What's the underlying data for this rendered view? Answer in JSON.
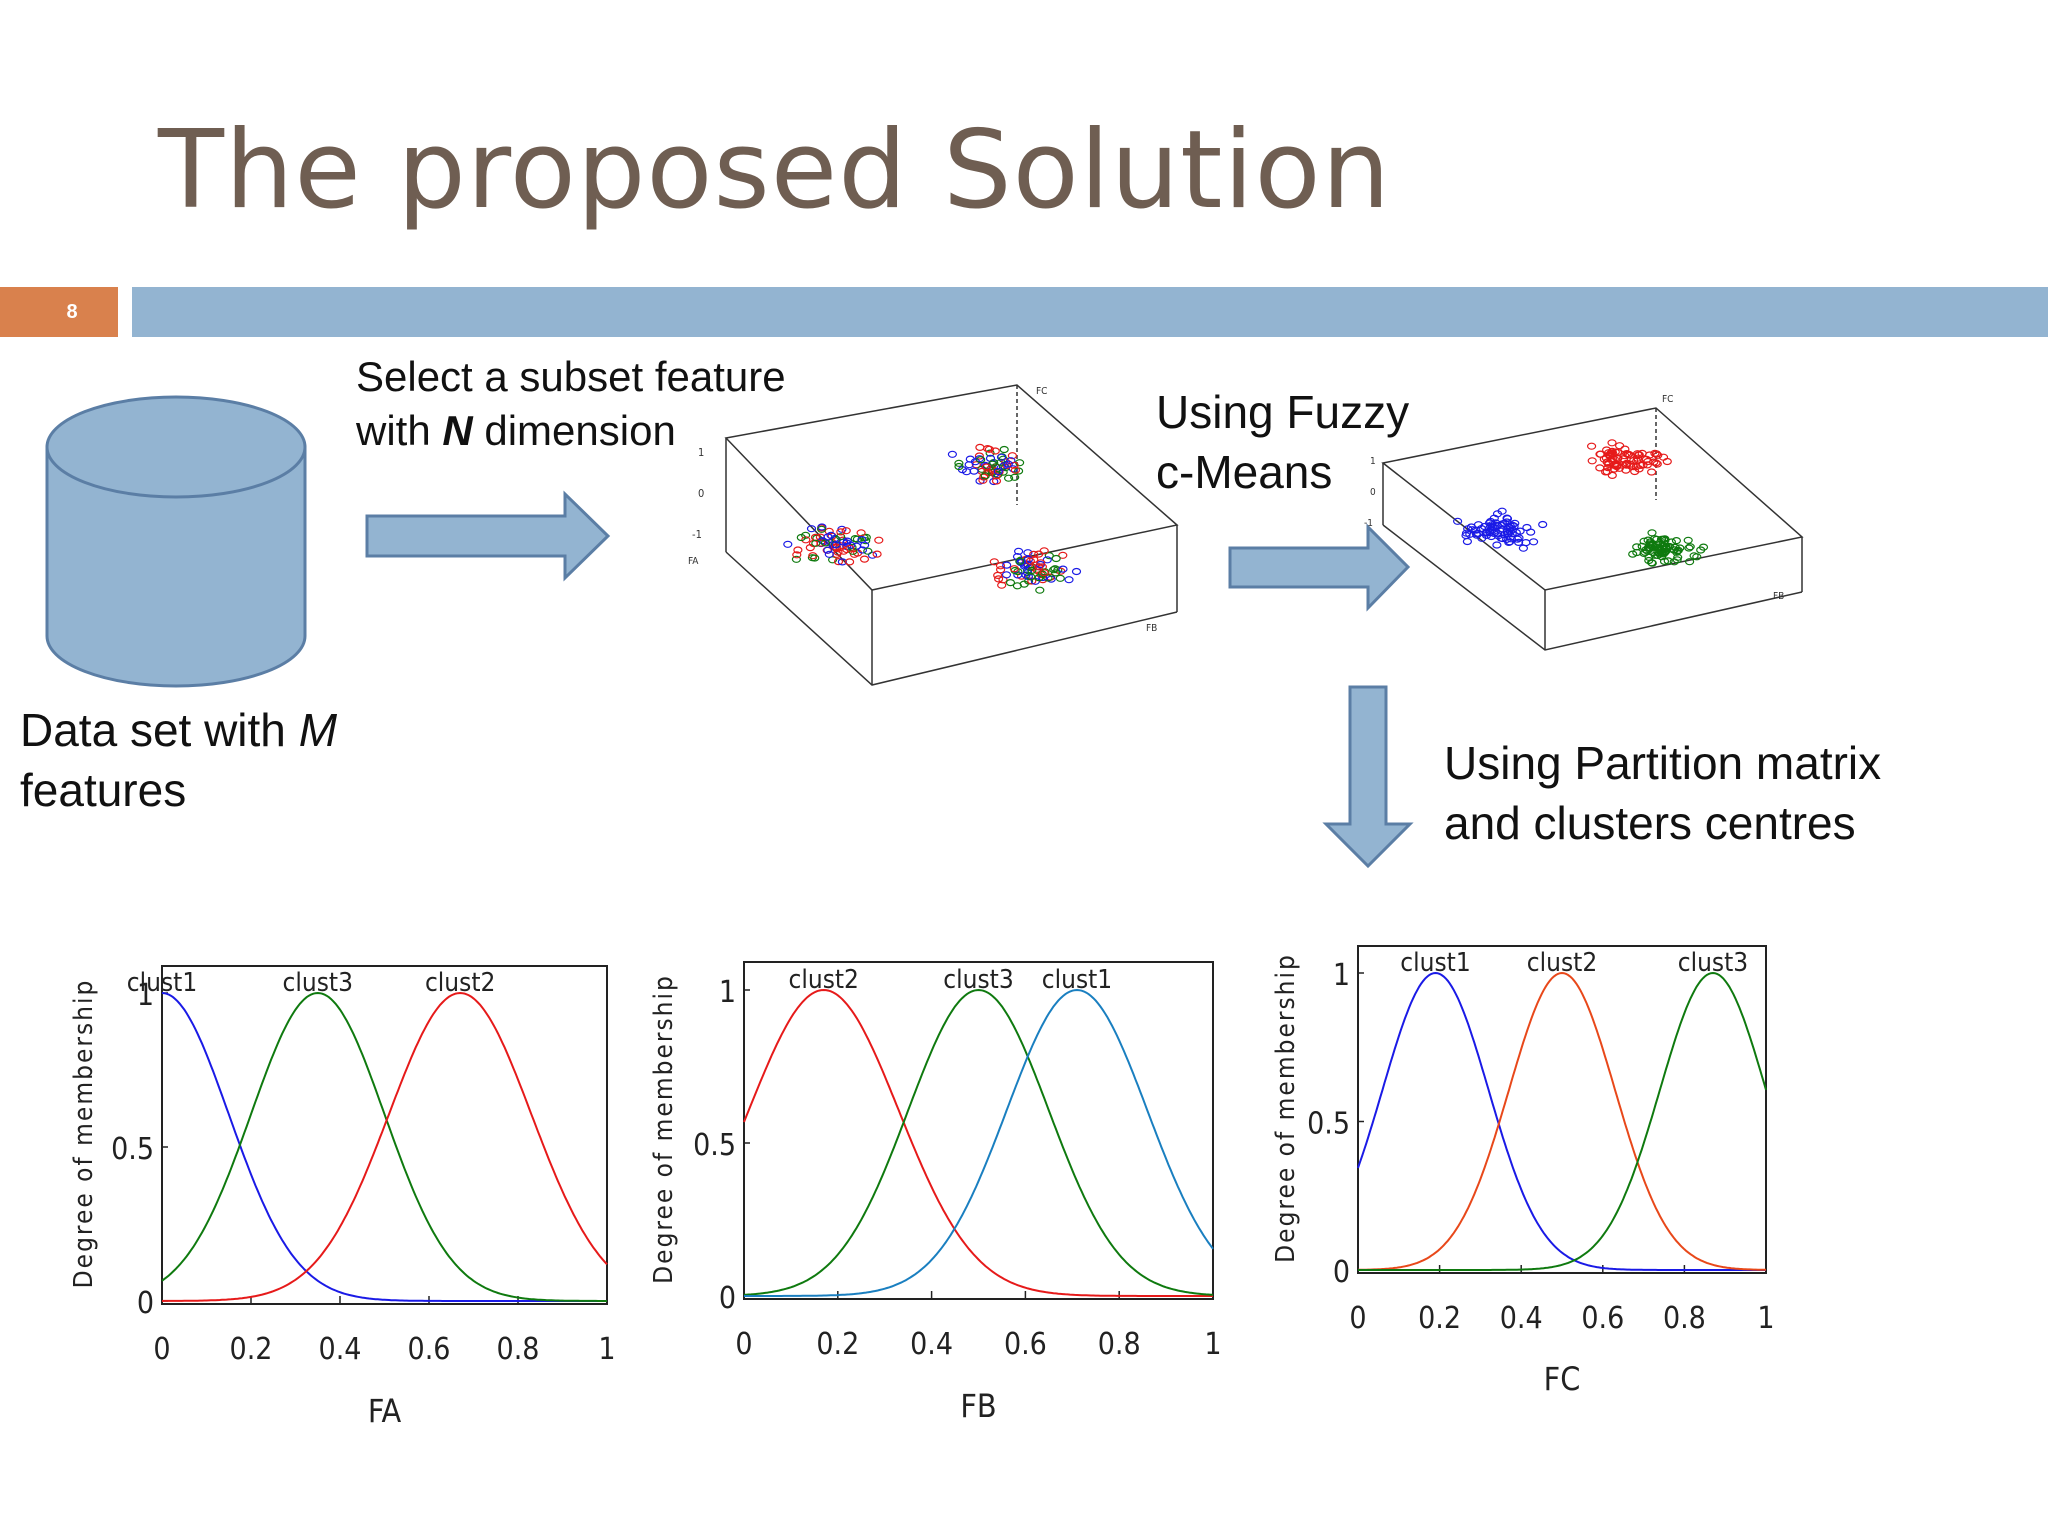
{
  "slide": {
    "title": "The proposed Solution",
    "page_number": "8"
  },
  "flow": {
    "dataset_line1": "Data set with ",
    "dataset_M": "M",
    "dataset_line2": "features",
    "subset_line1": "Select a subset feature",
    "subset_with": "with ",
    "subset_N": "N",
    "subset_dimension": " dimension",
    "fcm_line1": "Using Fuzzy",
    "fcm_line2": "c-Means",
    "partition_line1": "Using Partition matrix",
    "partition_line2": "and clusters centres"
  },
  "scatter_labels": {
    "fc": "FC",
    "fb": "FB",
    "fa": "FA",
    "z_ticks": [
      "1",
      "0",
      "-1"
    ]
  },
  "colors": {
    "clust_blue": "#1a1ae6",
    "clust_red": "#e61a1a",
    "clust_green": "#0f7a0f",
    "clust_cyan": "#1a7fc0",
    "clust_orange": "#e8481a",
    "arrow_fill": "#93b4d1",
    "arrow_stroke": "#5b7ea5",
    "title_color": "#6f5e52",
    "accent_orange": "#d9814d"
  },
  "chart_data": [
    {
      "type": "line",
      "xlabel": "FA",
      "ylabel": "Degree of membership",
      "xlim": [
        0,
        1
      ],
      "ylim": [
        0,
        1
      ],
      "xticks": [
        "0",
        "0.2",
        "0.4",
        "0.6",
        "0.8",
        "1"
      ],
      "yticks": [
        "0",
        "0.5",
        "1"
      ],
      "series": [
        {
          "name": "clust1",
          "center": 0.0,
          "sigma": 0.15,
          "color": "#1a1ae6"
        },
        {
          "name": "clust3",
          "center": 0.35,
          "sigma": 0.15,
          "color": "#0f7a0f"
        },
        {
          "name": "clust2",
          "center": 0.67,
          "sigma": 0.16,
          "color": "#e61a1a"
        }
      ]
    },
    {
      "type": "line",
      "xlabel": "FB",
      "ylabel": "Degree of membership",
      "xlim": [
        0,
        1
      ],
      "ylim": [
        0,
        1
      ],
      "xticks": [
        "0",
        "0.2",
        "0.4",
        "0.6",
        "0.8",
        "1"
      ],
      "yticks": [
        "0",
        "0.5",
        "1"
      ],
      "series": [
        {
          "name": "clust2",
          "center": 0.17,
          "sigma": 0.16,
          "color": "#e61a1a"
        },
        {
          "name": "clust3",
          "center": 0.5,
          "sigma": 0.15,
          "color": "#0f7a0f"
        },
        {
          "name": "clust1",
          "center": 0.71,
          "sigma": 0.15,
          "color": "#1a7fc0"
        }
      ]
    },
    {
      "type": "line",
      "xlabel": "FC",
      "ylabel": "Degree of membership",
      "xlim": [
        0,
        1
      ],
      "ylim": [
        0,
        1
      ],
      "xticks": [
        "0",
        "0.2",
        "0.4",
        "0.6",
        "0.8",
        "1"
      ],
      "yticks": [
        "0",
        "0.5",
        "1"
      ],
      "series": [
        {
          "name": "clust1",
          "center": 0.19,
          "sigma": 0.13,
          "color": "#1a1ae6"
        },
        {
          "name": "clust2",
          "center": 0.5,
          "sigma": 0.13,
          "color": "#e8481a"
        },
        {
          "name": "clust3",
          "center": 0.87,
          "sigma": 0.13,
          "color": "#0f7a0f"
        }
      ]
    }
  ]
}
